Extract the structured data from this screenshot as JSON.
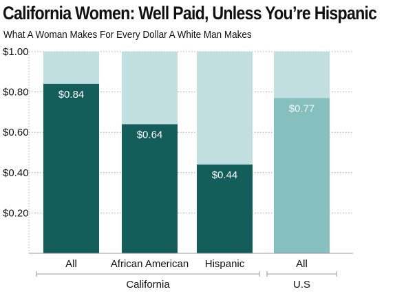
{
  "chart_data": {
    "type": "bar",
    "title": "California Women: Well Paid, Unless You’re Hispanic",
    "subtitle": "What A Woman Makes For Every Dollar A White Man Makes",
    "categories": [
      "All",
      "African American",
      "Hispanic",
      "All"
    ],
    "groups": [
      {
        "label": "California",
        "categories": [
          0,
          1,
          2
        ]
      },
      {
        "label": "U.S",
        "categories": [
          3
        ]
      }
    ],
    "values": [
      0.84,
      0.64,
      0.44,
      0.77
    ],
    "data_labels": [
      "$0.84",
      "$0.64",
      "$0.44",
      "$0.77"
    ],
    "reference_value": 1.0,
    "yticks": [
      {
        "value": 0.2,
        "label": "$0.20"
      },
      {
        "value": 0.4,
        "label": "$0.40"
      },
      {
        "value": 0.6,
        "label": "$0.60"
      },
      {
        "value": 0.8,
        "label": "$0.80"
      },
      {
        "value": 1.0,
        "label": "$1.00"
      }
    ],
    "ylim": [
      0,
      1.0
    ],
    "xlabel": "",
    "ylabel": "",
    "grid": true,
    "colors": {
      "california_fill": "#135e5b",
      "california_background": "#c2dfe0",
      "us_fill": "#85c0be",
      "us_background": "#c2dfe0",
      "label_california": "#ffffff",
      "label_us": "#eef7f7",
      "grid": "#999999",
      "axis": "#999999"
    }
  }
}
